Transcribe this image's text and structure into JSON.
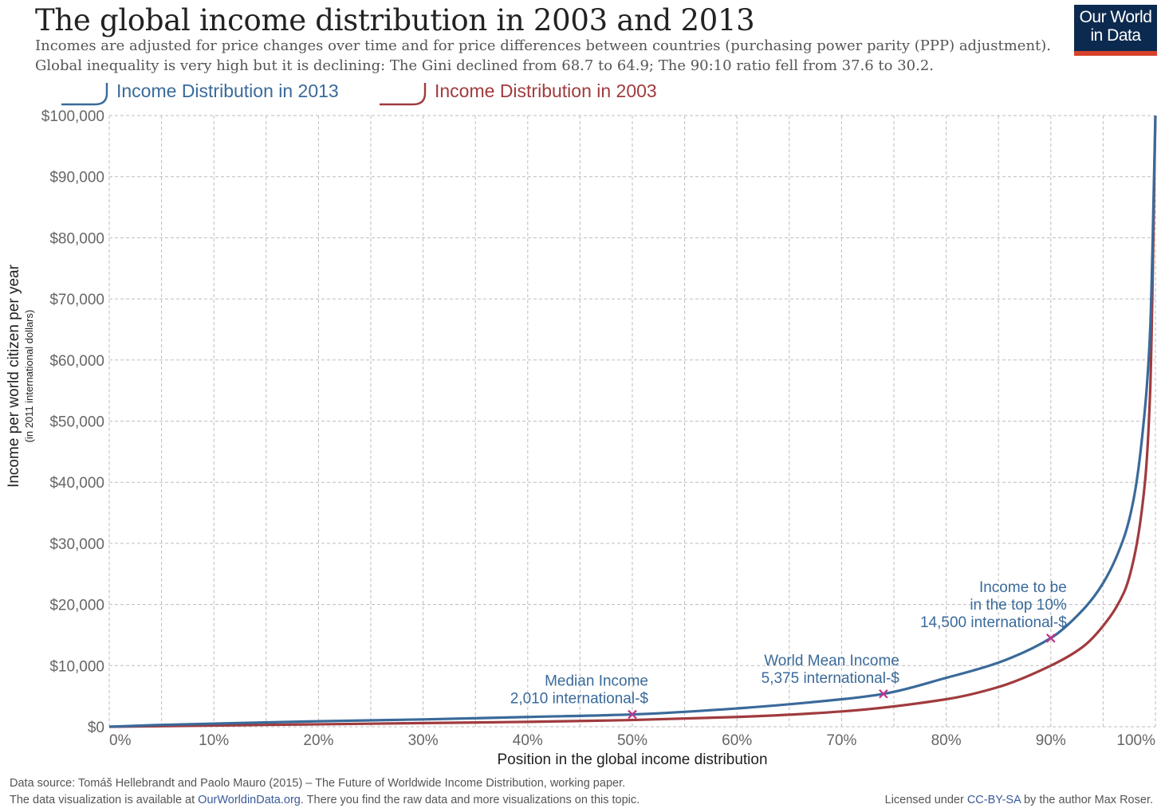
{
  "header": {
    "title": "The global income distribution in 2003 and 2013",
    "subtitle_line1": "Incomes are adjusted for price changes over time and for price differences between countries (purchasing power parity (PPP) adjustment).",
    "subtitle_line2": "Global inequality is very high but it is declining: The Gini declined from 68.7 to 64.9; The 90:10 ratio fell from 37.6 to 30.2."
  },
  "logo": {
    "line1": "Our World",
    "line2": "in Data"
  },
  "footer": {
    "source": "Data source: Tomáš Hellebrandt and Paolo Mauro (2015) – The Future of Worldwide Income Distribution, working paper.",
    "avail_prefix": "The data visualization is available at ",
    "avail_link": "OurWorldinData.org",
    "avail_suffix": ". There you find the raw data and more visualizations on this topic.",
    "license_prefix": "Licensed under ",
    "license_link": "CC-BY-SA",
    "license_suffix": " by the author Max Roser."
  },
  "colors": {
    "series_2013": "#3a6a9a",
    "series_2003": "#a03b3e",
    "marker": "#c0338a",
    "grid": "#bdbdbd"
  },
  "chart_data": {
    "type": "line",
    "xlabel": "Position in the global income distribution",
    "ylabel": "Income per world citizen per year",
    "ylabel_sub": "(in 2011 international dollars)",
    "xlim": [
      0,
      100
    ],
    "ylim": [
      0,
      100000
    ],
    "x_ticks": [
      0,
      10,
      20,
      30,
      40,
      50,
      60,
      70,
      80,
      90,
      100
    ],
    "x_tick_labels": [
      "0%",
      "10%",
      "20%",
      "30%",
      "40%",
      "50%",
      "60%",
      "70%",
      "80%",
      "90%",
      "100%"
    ],
    "y_ticks": [
      0,
      10000,
      20000,
      30000,
      40000,
      50000,
      60000,
      70000,
      80000,
      90000,
      100000
    ],
    "y_tick_labels": [
      "$0",
      "$10,000",
      "$20,000",
      "$30,000",
      "$40,000",
      "$50,000",
      "$60,000",
      "$70,000",
      "$80,000",
      "$90,000",
      "$100,000"
    ],
    "grid": true,
    "legend_position": "top-left",
    "series": [
      {
        "name": "Income Distribution in 2013",
        "x": [
          0,
          5,
          10,
          20,
          30,
          40,
          50,
          60,
          70,
          74,
          80,
          85,
          90,
          93,
          95,
          97,
          98,
          99,
          99.5,
          100
        ],
        "y": [
          0,
          300,
          500,
          900,
          1200,
          1600,
          2010,
          3000,
          4500,
          5375,
          8000,
          10500,
          14500,
          19000,
          23500,
          31000,
          38000,
          52000,
          65000,
          100000
        ]
      },
      {
        "name": "Income Distribution in 2003",
        "x": [
          0,
          10,
          20,
          30,
          40,
          50,
          60,
          70,
          80,
          85,
          90,
          93,
          95,
          97,
          98,
          99,
          99.5,
          100
        ],
        "y": [
          0,
          200,
          400,
          600,
          800,
          1100,
          1600,
          2500,
          4500,
          6500,
          10000,
          13000,
          16500,
          22000,
          28000,
          40000,
          55000,
          100000
        ]
      }
    ],
    "annotations": [
      {
        "lines": [
          "Median Income",
          "2,010 international-$"
        ],
        "x": 50,
        "y": 2010
      },
      {
        "lines": [
          "World Mean Income",
          "5,375 international-$"
        ],
        "x": 74,
        "y": 5375
      },
      {
        "lines": [
          "Income to be",
          "in the top 10%",
          "14,500 international-$"
        ],
        "x": 90,
        "y": 14500
      }
    ]
  }
}
